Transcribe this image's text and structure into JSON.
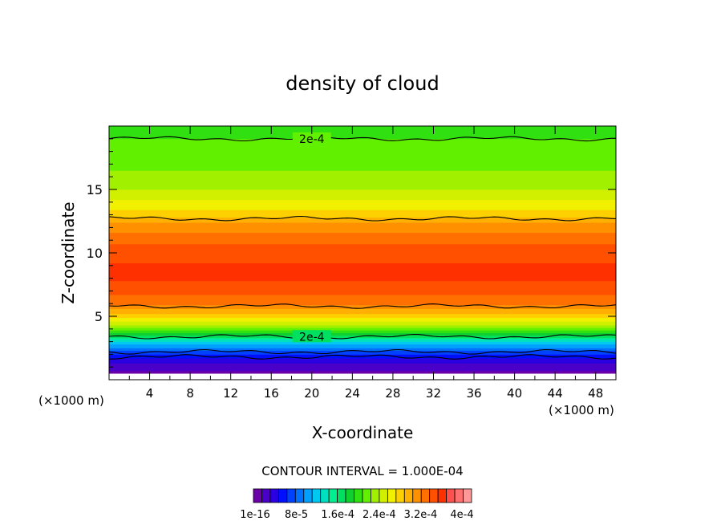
{
  "chart_data": {
    "type": "heatmap",
    "title": "density of cloud",
    "xlabel": "X-coordinate",
    "ylabel": "Z-coordinate",
    "x_unit_left": "(×1000 m)",
    "x_unit_right": "(×1000 m)",
    "xlim": [
      0,
      50
    ],
    "ylim": [
      0,
      20
    ],
    "x_ticks": [
      "4",
      "8",
      "12",
      "16",
      "20",
      "24",
      "28",
      "32",
      "36",
      "40",
      "44",
      "48"
    ],
    "y_ticks": [
      "5",
      "10",
      "15"
    ],
    "contour_interval_text": "CONTOUR INTERVAL = 1.000E-04",
    "contour_labels": [
      "2e-4",
      "2e-4"
    ],
    "colorbar_labels": [
      "1e-16",
      "8e-5",
      "1.6e-4",
      "2.4e-4",
      "3.2e-4",
      "4e-4"
    ],
    "colorbar_min": 0,
    "colorbar_max": 0.0004,
    "colorbar_colors": [
      "#6a00a8",
      "#4a00c8",
      "#2a00e0",
      "#0010ff",
      "#0040ff",
      "#0070ff",
      "#00a0ff",
      "#00c8f0",
      "#00e0c0",
      "#00f090",
      "#00e060",
      "#10d030",
      "#30e010",
      "#60f000",
      "#a0f000",
      "#d0f000",
      "#f0f000",
      "#ffd000",
      "#ffb000",
      "#ff9000",
      "#ff7000",
      "#ff5000",
      "#ff3000",
      "#ff5050",
      "#ff7070",
      "#ff9898"
    ],
    "vertical_profile": [
      {
        "z": 0.3,
        "value": 1e-05
      },
      {
        "z": 1.0,
        "value": 2e-05
      },
      {
        "z": 1.5,
        "value": 4e-05
      },
      {
        "z": 2.0,
        "value": 6e-05
      },
      {
        "z": 2.5,
        "value": 9e-05
      },
      {
        "z": 3.0,
        "value": 0.00012
      },
      {
        "z": 3.5,
        "value": 0.00017
      },
      {
        "z": 4.0,
        "value": 0.00021
      },
      {
        "z": 4.5,
        "value": 0.00024
      },
      {
        "z": 5.0,
        "value": 0.00027
      },
      {
        "z": 5.5,
        "value": 0.00029
      },
      {
        "z": 6.0,
        "value": 0.00031
      },
      {
        "z": 7.0,
        "value": 0.00033
      },
      {
        "z": 8.0,
        "value": 0.00034
      },
      {
        "z": 9.0,
        "value": 0.00034
      },
      {
        "z": 10.0,
        "value": 0.00033
      },
      {
        "z": 11.0,
        "value": 0.00032
      },
      {
        "z": 12.0,
        "value": 0.0003
      },
      {
        "z": 12.5,
        "value": 0.00029
      },
      {
        "z": 13.0,
        "value": 0.00027
      },
      {
        "z": 14.0,
        "value": 0.00025
      },
      {
        "z": 15.0,
        "value": 0.00023
      },
      {
        "z": 16.0,
        "value": 0.00022
      },
      {
        "z": 17.0,
        "value": 0.00021
      },
      {
        "z": 18.0,
        "value": 0.0002
      },
      {
        "z": 19.0,
        "value": 0.0002
      },
      {
        "z": 20.0,
        "value": 0.00019
      }
    ],
    "contour_levels_z": [
      {
        "level": 0.0002,
        "z": 19.0
      },
      {
        "level": 0.0003,
        "z": 12.7
      },
      {
        "level": 0.0003,
        "z": 5.8
      },
      {
        "level": 0.0002,
        "z": 3.4
      },
      {
        "level": 0.0001,
        "z": 2.2
      },
      {
        "level": 5e-05,
        "z": 1.8
      }
    ]
  }
}
